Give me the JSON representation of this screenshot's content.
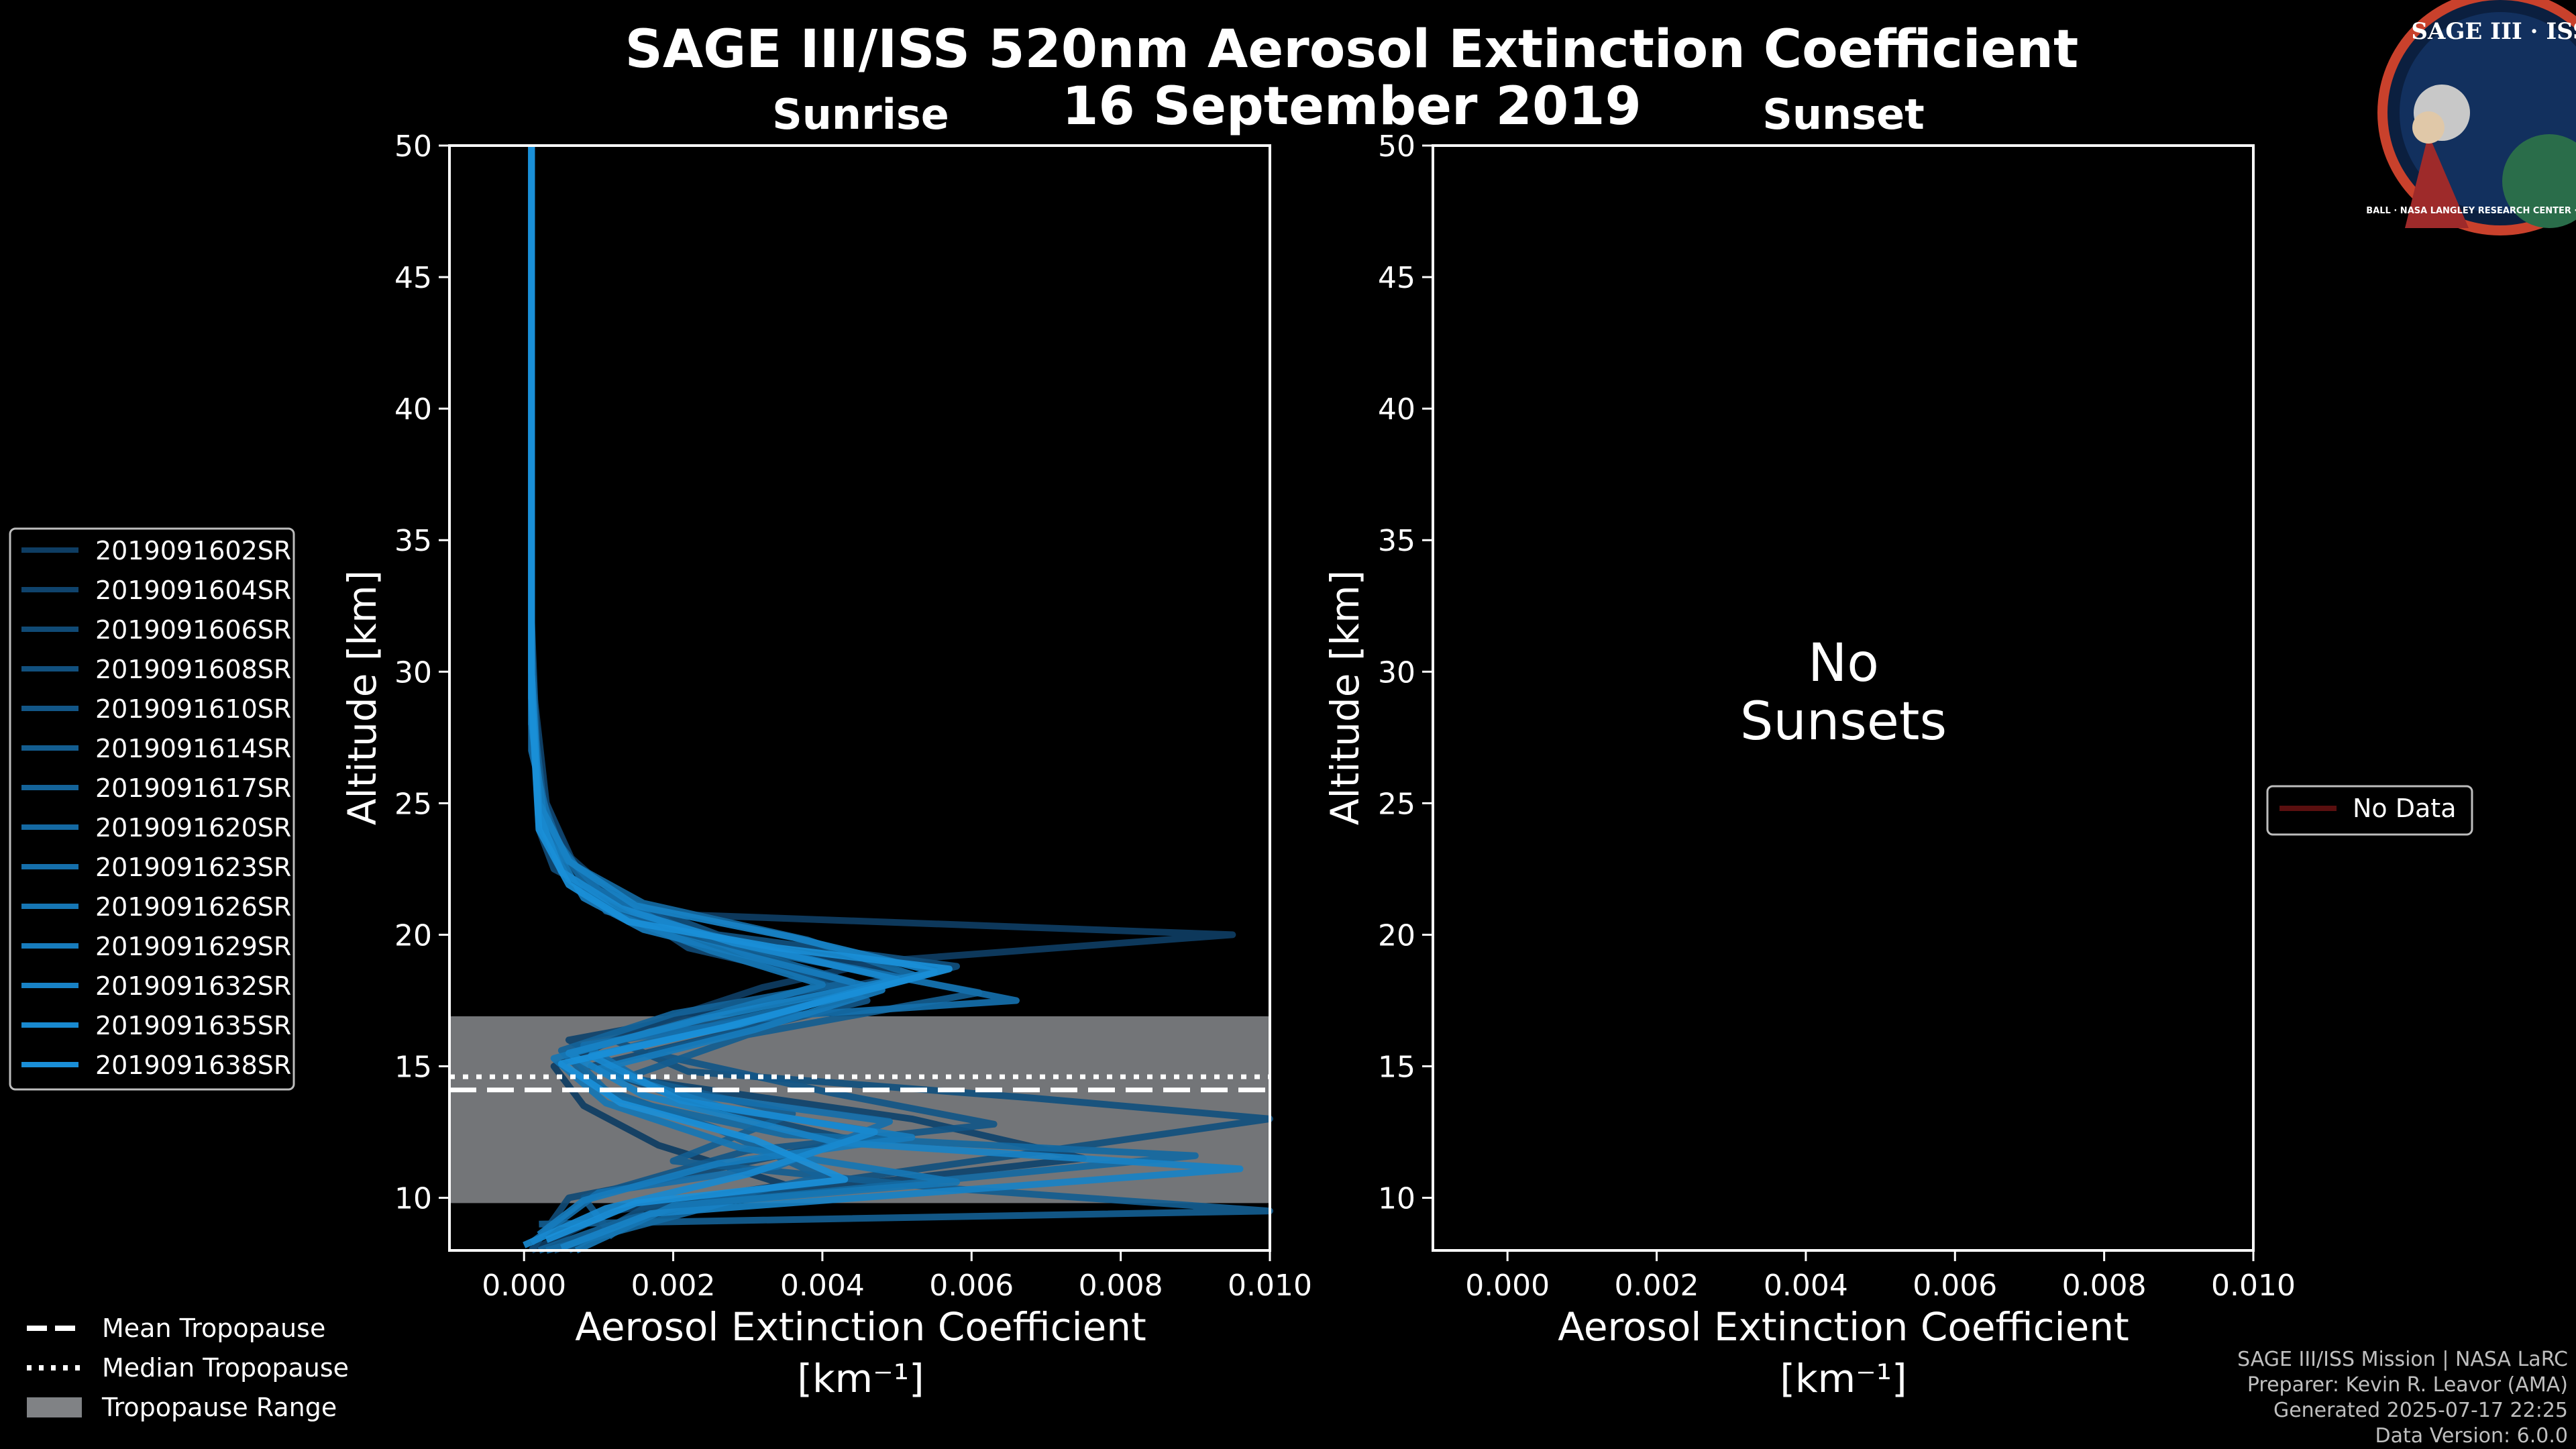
{
  "title": "SAGE III/ISS 520nm Aerosol Extinction Coefficient",
  "date": "16 September 2019",
  "logo": {
    "top": "SAGE III · ISS",
    "bottom": "BALL · NASA LANGLEY RESEARCH CENTER · TAS-I · ESA"
  },
  "credits": [
    "SAGE III/ISS Mission | NASA LaRC",
    "Preparer: Kevin R. Leavor (AMA)",
    "Generated 2025-07-17 22:25",
    "Data Version: 6.0.0"
  ],
  "colors": {
    "series_dark": "#0e3d63",
    "series_light": "#1a8fd8",
    "tropo_range": "#808285",
    "no_data": "#5a0f0f"
  },
  "tropopause_legend": [
    "Mean Tropopause",
    "Median Tropopause",
    "Tropopause Range"
  ],
  "no_data_label": "No Data",
  "no_sunsets_text": [
    "No",
    "Sunsets"
  ],
  "chart_data": [
    {
      "type": "line",
      "panel": "Sunrise",
      "title": "Sunrise",
      "xlabel": "Aerosol Extinction Coefficient",
      "xunit": "[km⁻¹]",
      "ylabel": "Altitude [km]",
      "xlim": [
        -0.001,
        0.01
      ],
      "ylim": [
        8,
        50
      ],
      "xticks": [
        "0.000",
        "0.002",
        "0.004",
        "0.006",
        "0.008",
        "0.010"
      ],
      "yticks": [
        "10",
        "15",
        "20",
        "25",
        "30",
        "35",
        "40",
        "45",
        "50"
      ],
      "legend_position": "left",
      "tropopause": {
        "mean": 14.1,
        "median": 14.6,
        "range": [
          9.8,
          16.9
        ]
      },
      "series": [
        {
          "name": "2019091602SR",
          "points": [
            [
              0.0001,
              8
            ],
            [
              0.0012,
              9.5
            ],
            [
              0.0035,
              10.5
            ],
            [
              0.0018,
              12
            ],
            [
              0.0008,
              13.5
            ],
            [
              0.0004,
              15
            ],
            [
              0.0016,
              16.5
            ],
            [
              0.0032,
              18
            ],
            [
              0.0048,
              19
            ],
            [
              0.0095,
              20
            ],
            [
              0.0018,
              20.8
            ],
            [
              0.0012,
              21.5
            ],
            [
              0.0006,
              23
            ],
            [
              0.0003,
              25
            ],
            [
              0.0001,
              28
            ],
            [
              0.0001,
              35
            ],
            [
              0.0001,
              50
            ]
          ]
        },
        {
          "name": "2019091604SR",
          "points": [
            [
              0.0004,
              8
            ],
            [
              0.0022,
              9.8
            ],
            [
              0.0075,
              11.5
            ],
            [
              0.0052,
              13
            ],
            [
              0.0015,
              14.5
            ],
            [
              0.0006,
              16
            ],
            [
              0.0025,
              17
            ],
            [
              0.0052,
              18.5
            ],
            [
              0.0031,
              19.6
            ],
            [
              0.0012,
              20.8
            ],
            [
              0.0007,
              22.5
            ],
            [
              0.0003,
              25
            ],
            [
              0.0001,
              30
            ],
            [
              0.0001,
              50
            ]
          ]
        },
        {
          "name": "2019091606SR",
          "points": [
            [
              0.0001,
              8
            ],
            [
              0.0006,
              10
            ],
            [
              0.0024,
              11
            ],
            [
              0.0044,
              12.2
            ],
            [
              0.0024,
              13.5
            ],
            [
              0.0009,
              15
            ],
            [
              0.0028,
              16.3
            ],
            [
              0.0045,
              18
            ],
            [
              0.0022,
              19.5
            ],
            [
              0.0014,
              21
            ],
            [
              0.0004,
              22.5
            ],
            [
              0.0002,
              24
            ],
            [
              0.0001,
              30
            ],
            [
              0.0001,
              50
            ]
          ]
        },
        {
          "name": "2019091608SR",
          "points": [
            [
              0.0006,
              8
            ],
            [
              0.0016,
              9.6
            ],
            [
              0.01,
              13
            ],
            [
              0.0068,
              13.8
            ],
            [
              0.0022,
              14.8
            ],
            [
              0.0012,
              16
            ],
            [
              0.0036,
              17.2
            ],
            [
              0.0058,
              18.8
            ],
            [
              0.0026,
              20
            ],
            [
              0.0011,
              21.6
            ],
            [
              0.0005,
              23
            ],
            [
              0.0002,
              25
            ],
            [
              0.0001,
              32
            ],
            [
              0.0001,
              50
            ]
          ]
        },
        {
          "name": "2019091610SR",
          "points": [
            [
              0.0012,
              8.5
            ],
            [
              0.0008,
              10
            ],
            [
              0.003,
              11.8
            ],
            [
              0.0063,
              12.8
            ],
            [
              0.0041,
              14
            ],
            [
              0.0017,
              15.5
            ],
            [
              0.0046,
              17.5
            ],
            [
              0.0032,
              19
            ],
            [
              0.0021,
              20.3
            ],
            [
              0.0009,
              21.8
            ],
            [
              0.0003,
              24
            ],
            [
              0.0001,
              28
            ],
            [
              0.0001,
              50
            ]
          ]
        },
        {
          "name": "2019091614SR",
          "points": [
            [
              0.0002,
              9
            ],
            [
              0.01,
              9.5
            ],
            [
              0.0055,
              10.4
            ],
            [
              0.002,
              11.4
            ],
            [
              0.0036,
              13.2
            ],
            [
              0.0014,
              14.6
            ],
            [
              0.003,
              16.2
            ],
            [
              0.0061,
              17.8
            ],
            [
              0.0033,
              19.3
            ],
            [
              0.0017,
              20.6
            ],
            [
              0.0008,
              22
            ],
            [
              0.0003,
              24
            ],
            [
              0.0001,
              29
            ],
            [
              0.0001,
              50
            ]
          ]
        },
        {
          "name": "2019091617SR",
          "points": [
            [
              0.0002,
              8
            ],
            [
              0.0014,
              9.2
            ],
            [
              0.004,
              10.8
            ],
            [
              0.0026,
              12.6
            ],
            [
              0.001,
              14.2
            ],
            [
              0.0005,
              15.6
            ],
            [
              0.002,
              17
            ],
            [
              0.0044,
              18.2
            ],
            [
              0.0027,
              19.6
            ],
            [
              0.0011,
              20.9
            ],
            [
              0.0005,
              23.2
            ],
            [
              0.0002,
              25.5
            ],
            [
              0.0001,
              31
            ],
            [
              0.0001,
              50
            ]
          ]
        },
        {
          "name": "2019091620SR",
          "points": [
            [
              0.0003,
              8
            ],
            [
              0.0028,
              9.9
            ],
            [
              0.009,
              11.6
            ],
            [
              0.0035,
              12.4
            ],
            [
              0.0012,
              13.8
            ],
            [
              0.0007,
              15.2
            ],
            [
              0.0026,
              16.6
            ],
            [
              0.0053,
              18.4
            ],
            [
              0.0038,
              19.8
            ],
            [
              0.0016,
              21.2
            ],
            [
              0.0007,
              22.6
            ],
            [
              0.0002,
              24.5
            ],
            [
              0.0001,
              30
            ],
            [
              0.0001,
              50
            ]
          ]
        },
        {
          "name": "2019091623SR",
          "points": [
            [
              0.0001,
              8.3
            ],
            [
              0.001,
              10.2
            ],
            [
              0.0034,
              11.2
            ],
            [
              0.0049,
              12.9
            ],
            [
              0.0018,
              14.1
            ],
            [
              0.0008,
              15.8
            ],
            [
              0.0034,
              16.9
            ],
            [
              0.0066,
              17.5
            ],
            [
              0.0041,
              18.9
            ],
            [
              0.0019,
              20.4
            ],
            [
              0.001,
              21.7
            ],
            [
              0.0004,
              23.5
            ],
            [
              0.0001,
              27
            ],
            [
              0.0001,
              50
            ]
          ]
        },
        {
          "name": "2019091626SR",
          "points": [
            [
              0.0007,
              8
            ],
            [
              0.002,
              9.7
            ],
            [
              0.0058,
              10.6
            ],
            [
              0.0029,
              11.9
            ],
            [
              0.0011,
              13.6
            ],
            [
              0.0004,
              15.3
            ],
            [
              0.0022,
              16.7
            ],
            [
              0.004,
              18.1
            ],
            [
              0.0025,
              19.4
            ],
            [
              0.0013,
              20.7
            ],
            [
              0.0006,
              22.1
            ],
            [
              0.0002,
              24.2
            ],
            [
              0.0001,
              29
            ],
            [
              0.0001,
              50
            ]
          ]
        },
        {
          "name": "2019091629SR",
          "points": [
            [
              0.0002,
              8.6
            ],
            [
              0.0008,
              9.9
            ],
            [
              0.0026,
              11.3
            ],
            [
              0.0052,
              12.3
            ],
            [
              0.0027,
              13.4
            ],
            [
              0.001,
              14.9
            ],
            [
              0.0031,
              16.4
            ],
            [
              0.0048,
              17.9
            ],
            [
              0.003,
              19.2
            ],
            [
              0.0016,
              20.2
            ],
            [
              0.0008,
              21.4
            ],
            [
              0.0003,
              23.8
            ],
            [
              0.0001,
              28
            ],
            [
              0.0001,
              50
            ]
          ]
        },
        {
          "name": "2019091632SR",
          "points": [
            [
              0.0005,
              8.1
            ],
            [
              0.0017,
              9.4
            ],
            [
              0.0096,
              11.1
            ],
            [
              0.0042,
              12.1
            ],
            [
              0.0016,
              13.9
            ],
            [
              0.0006,
              15.5
            ],
            [
              0.0024,
              16.8
            ],
            [
              0.0055,
              18.6
            ],
            [
              0.0036,
              19.9
            ],
            [
              0.0015,
              21.1
            ],
            [
              0.0006,
              22.8
            ],
            [
              0.0002,
              25
            ],
            [
              0.0001,
              30
            ],
            [
              0.0001,
              50
            ]
          ]
        },
        {
          "name": "2019091635SR",
          "points": [
            [
              0.0,
              8.2
            ],
            [
              0.0011,
              9.6
            ],
            [
              0.003,
              10.9
            ],
            [
              0.0047,
              12.5
            ],
            [
              0.0021,
              13.7
            ],
            [
              0.0009,
              15.4
            ],
            [
              0.0029,
              16.6
            ],
            [
              0.005,
              18.3
            ],
            [
              0.0028,
              19.7
            ],
            [
              0.0013,
              21
            ],
            [
              0.0005,
              22.4
            ],
            [
              0.0002,
              24.6
            ],
            [
              0.0001,
              30
            ],
            [
              0.0001,
              50
            ]
          ]
        },
        {
          "name": "2019091638SR",
          "points": [
            [
              0.0003,
              8.4
            ],
            [
              0.0015,
              9.8
            ],
            [
              0.0043,
              10.7
            ],
            [
              0.0031,
              12.2
            ],
            [
              0.0013,
              13.6
            ],
            [
              0.0005,
              15.1
            ],
            [
              0.0027,
              16.5
            ],
            [
              0.0057,
              18.7
            ],
            [
              0.0034,
              19.5
            ],
            [
              0.0014,
              20.5
            ],
            [
              0.0006,
              21.9
            ],
            [
              0.0002,
              24
            ],
            [
              0.0001,
              29
            ],
            [
              0.0001,
              50
            ]
          ]
        }
      ]
    },
    {
      "type": "line",
      "panel": "Sunset",
      "title": "Sunset",
      "xlabel": "Aerosol Extinction Coefficient",
      "xunit": "[km⁻¹]",
      "ylabel": "Altitude [km]",
      "xlim": [
        -0.001,
        0.01
      ],
      "ylim": [
        8,
        50
      ],
      "xticks": [
        "0.000",
        "0.002",
        "0.004",
        "0.006",
        "0.008",
        "0.010"
      ],
      "yticks": [
        "10",
        "15",
        "20",
        "25",
        "30",
        "35",
        "40",
        "45",
        "50"
      ],
      "legend_position": "right",
      "series": []
    }
  ]
}
